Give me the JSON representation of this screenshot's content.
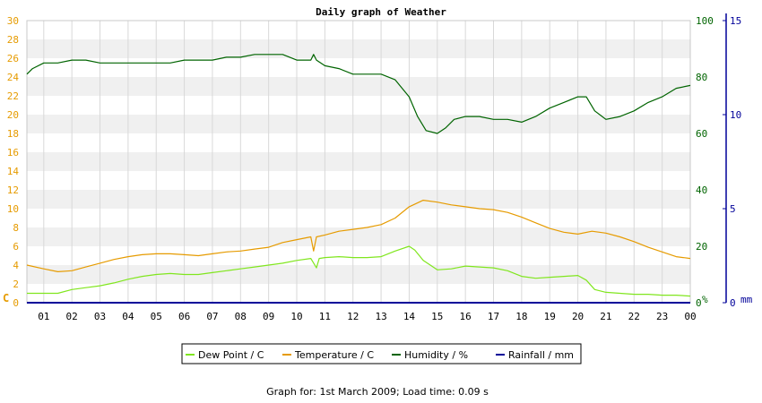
{
  "chart_data": {
    "type": "line",
    "title": "Daily graph of Weather",
    "x_tick_labels": [
      "01",
      "02",
      "03",
      "04",
      "05",
      "06",
      "07",
      "08",
      "09",
      "10",
      "11",
      "12",
      "13",
      "14",
      "15",
      "16",
      "17",
      "18",
      "19",
      "20",
      "21",
      "22",
      "23",
      "00"
    ],
    "x_range_hours": [
      0.4,
      24.0
    ],
    "axes": {
      "left": {
        "unit_label": "C",
        "range": [
          0,
          30
        ],
        "ticks": [
          0,
          2,
          4,
          6,
          8,
          10,
          12,
          14,
          16,
          18,
          20,
          22,
          24,
          26,
          28,
          30
        ],
        "color": "#e69b00"
      },
      "right1": {
        "unit_label": "%",
        "range": [
          0,
          100
        ],
        "ticks": [
          0,
          20,
          40,
          60,
          80,
          100
        ],
        "color": "#006400"
      },
      "right2": {
        "unit_label": "mm",
        "range": [
          0,
          15
        ],
        "ticks": [
          0,
          5,
          10,
          15
        ],
        "color": "#000099"
      }
    },
    "grid": "horizontal bands",
    "legend_position": "bottom",
    "series": [
      {
        "name": "Dew Point / C",
        "color": "#80e61e",
        "axis": "left",
        "points": [
          [
            0.4,
            1.0
          ],
          [
            1.0,
            1.0
          ],
          [
            1.5,
            1.0
          ],
          [
            2.0,
            1.4
          ],
          [
            2.5,
            1.6
          ],
          [
            3.0,
            1.8
          ],
          [
            3.5,
            2.1
          ],
          [
            4.0,
            2.5
          ],
          [
            4.5,
            2.8
          ],
          [
            5.0,
            3.0
          ],
          [
            5.5,
            3.1
          ],
          [
            6.0,
            3.0
          ],
          [
            6.5,
            3.0
          ],
          [
            7.0,
            3.2
          ],
          [
            7.5,
            3.4
          ],
          [
            8.0,
            3.6
          ],
          [
            8.5,
            3.8
          ],
          [
            9.0,
            4.0
          ],
          [
            9.5,
            4.2
          ],
          [
            10.0,
            4.5
          ],
          [
            10.5,
            4.7
          ],
          [
            10.7,
            3.7
          ],
          [
            10.8,
            4.7
          ],
          [
            11.0,
            4.8
          ],
          [
            11.5,
            4.9
          ],
          [
            12.0,
            4.8
          ],
          [
            12.5,
            4.8
          ],
          [
            13.0,
            4.9
          ],
          [
            13.5,
            5.5
          ],
          [
            14.0,
            6.0
          ],
          [
            14.2,
            5.6
          ],
          [
            14.5,
            4.5
          ],
          [
            15.0,
            3.5
          ],
          [
            15.5,
            3.6
          ],
          [
            16.0,
            3.9
          ],
          [
            16.5,
            3.8
          ],
          [
            17.0,
            3.7
          ],
          [
            17.5,
            3.4
          ],
          [
            18.0,
            2.8
          ],
          [
            18.5,
            2.6
          ],
          [
            19.0,
            2.7
          ],
          [
            19.5,
            2.8
          ],
          [
            20.0,
            2.9
          ],
          [
            20.3,
            2.4
          ],
          [
            20.6,
            1.4
          ],
          [
            21.0,
            1.1
          ],
          [
            21.5,
            1.0
          ],
          [
            22.0,
            0.9
          ],
          [
            22.5,
            0.9
          ],
          [
            23.0,
            0.8
          ],
          [
            23.5,
            0.8
          ],
          [
            24.0,
            0.7
          ]
        ]
      },
      {
        "name": "Temperature / C",
        "color": "#e69b00",
        "axis": "left",
        "points": [
          [
            0.4,
            4.0
          ],
          [
            1.0,
            3.6
          ],
          [
            1.5,
            3.3
          ],
          [
            2.0,
            3.4
          ],
          [
            2.5,
            3.8
          ],
          [
            3.0,
            4.2
          ],
          [
            3.5,
            4.6
          ],
          [
            4.0,
            4.9
          ],
          [
            4.5,
            5.1
          ],
          [
            5.0,
            5.2
          ],
          [
            5.5,
            5.2
          ],
          [
            6.0,
            5.1
          ],
          [
            6.5,
            5.0
          ],
          [
            7.0,
            5.2
          ],
          [
            7.5,
            5.4
          ],
          [
            8.0,
            5.5
          ],
          [
            8.5,
            5.7
          ],
          [
            9.0,
            5.9
          ],
          [
            9.5,
            6.4
          ],
          [
            10.0,
            6.7
          ],
          [
            10.5,
            7.0
          ],
          [
            10.6,
            5.5
          ],
          [
            10.7,
            7.0
          ],
          [
            11.0,
            7.2
          ],
          [
            11.5,
            7.6
          ],
          [
            12.0,
            7.8
          ],
          [
            12.5,
            8.0
          ],
          [
            13.0,
            8.3
          ],
          [
            13.5,
            9.0
          ],
          [
            14.0,
            10.2
          ],
          [
            14.5,
            10.9
          ],
          [
            15.0,
            10.7
          ],
          [
            15.5,
            10.4
          ],
          [
            16.0,
            10.2
          ],
          [
            16.5,
            10.0
          ],
          [
            17.0,
            9.9
          ],
          [
            17.5,
            9.6
          ],
          [
            18.0,
            9.1
          ],
          [
            18.5,
            8.5
          ],
          [
            19.0,
            7.9
          ],
          [
            19.5,
            7.5
          ],
          [
            20.0,
            7.3
          ],
          [
            20.5,
            7.6
          ],
          [
            21.0,
            7.4
          ],
          [
            21.5,
            7.0
          ],
          [
            22.0,
            6.5
          ],
          [
            22.5,
            5.9
          ],
          [
            23.0,
            5.4
          ],
          [
            23.5,
            4.9
          ],
          [
            24.0,
            4.7
          ]
        ]
      },
      {
        "name": "Humidity / %",
        "color": "#006400",
        "axis": "right1",
        "points": [
          [
            0.4,
            81
          ],
          [
            0.6,
            83
          ],
          [
            1.0,
            85
          ],
          [
            1.5,
            85
          ],
          [
            2.0,
            86
          ],
          [
            2.5,
            86
          ],
          [
            3.0,
            85
          ],
          [
            3.5,
            85
          ],
          [
            4.0,
            85
          ],
          [
            4.5,
            85
          ],
          [
            5.0,
            85
          ],
          [
            5.5,
            85
          ],
          [
            6.0,
            86
          ],
          [
            6.5,
            86
          ],
          [
            7.0,
            86
          ],
          [
            7.5,
            87
          ],
          [
            8.0,
            87
          ],
          [
            8.5,
            88
          ],
          [
            9.0,
            88
          ],
          [
            9.5,
            88
          ],
          [
            10.0,
            86
          ],
          [
            10.5,
            86
          ],
          [
            10.6,
            88
          ],
          [
            10.7,
            86
          ],
          [
            11.0,
            84
          ],
          [
            11.5,
            83
          ],
          [
            12.0,
            81
          ],
          [
            12.5,
            81
          ],
          [
            13.0,
            81
          ],
          [
            13.5,
            79
          ],
          [
            14.0,
            73
          ],
          [
            14.3,
            66
          ],
          [
            14.6,
            61
          ],
          [
            15.0,
            60
          ],
          [
            15.3,
            62
          ],
          [
            15.6,
            65
          ],
          [
            16.0,
            66
          ],
          [
            16.5,
            66
          ],
          [
            17.0,
            65
          ],
          [
            17.5,
            65
          ],
          [
            18.0,
            64
          ],
          [
            18.5,
            66
          ],
          [
            19.0,
            69
          ],
          [
            19.5,
            71
          ],
          [
            20.0,
            73
          ],
          [
            20.3,
            73
          ],
          [
            20.6,
            68
          ],
          [
            21.0,
            65
          ],
          [
            21.5,
            66
          ],
          [
            22.0,
            68
          ],
          [
            22.5,
            71
          ],
          [
            23.0,
            73
          ],
          [
            23.5,
            76
          ],
          [
            24.0,
            77
          ]
        ]
      },
      {
        "name": "Rainfall / mm",
        "color": "#000099",
        "axis": "right2",
        "points": [
          [
            0.4,
            0
          ],
          [
            24.0,
            0
          ]
        ]
      }
    ]
  },
  "footer": "Graph for: 1st March 2009; Load time: 0.09 s"
}
